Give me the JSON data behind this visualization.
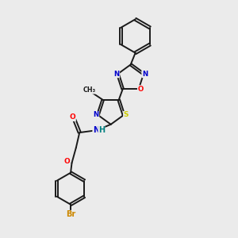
{
  "background_color": "#ebebeb",
  "bond_color": "#1a1a1a",
  "atom_colors": {
    "N": "#0000cc",
    "O": "#ff0000",
    "S": "#cccc00",
    "Br": "#cc8800",
    "H": "#008080"
  }
}
